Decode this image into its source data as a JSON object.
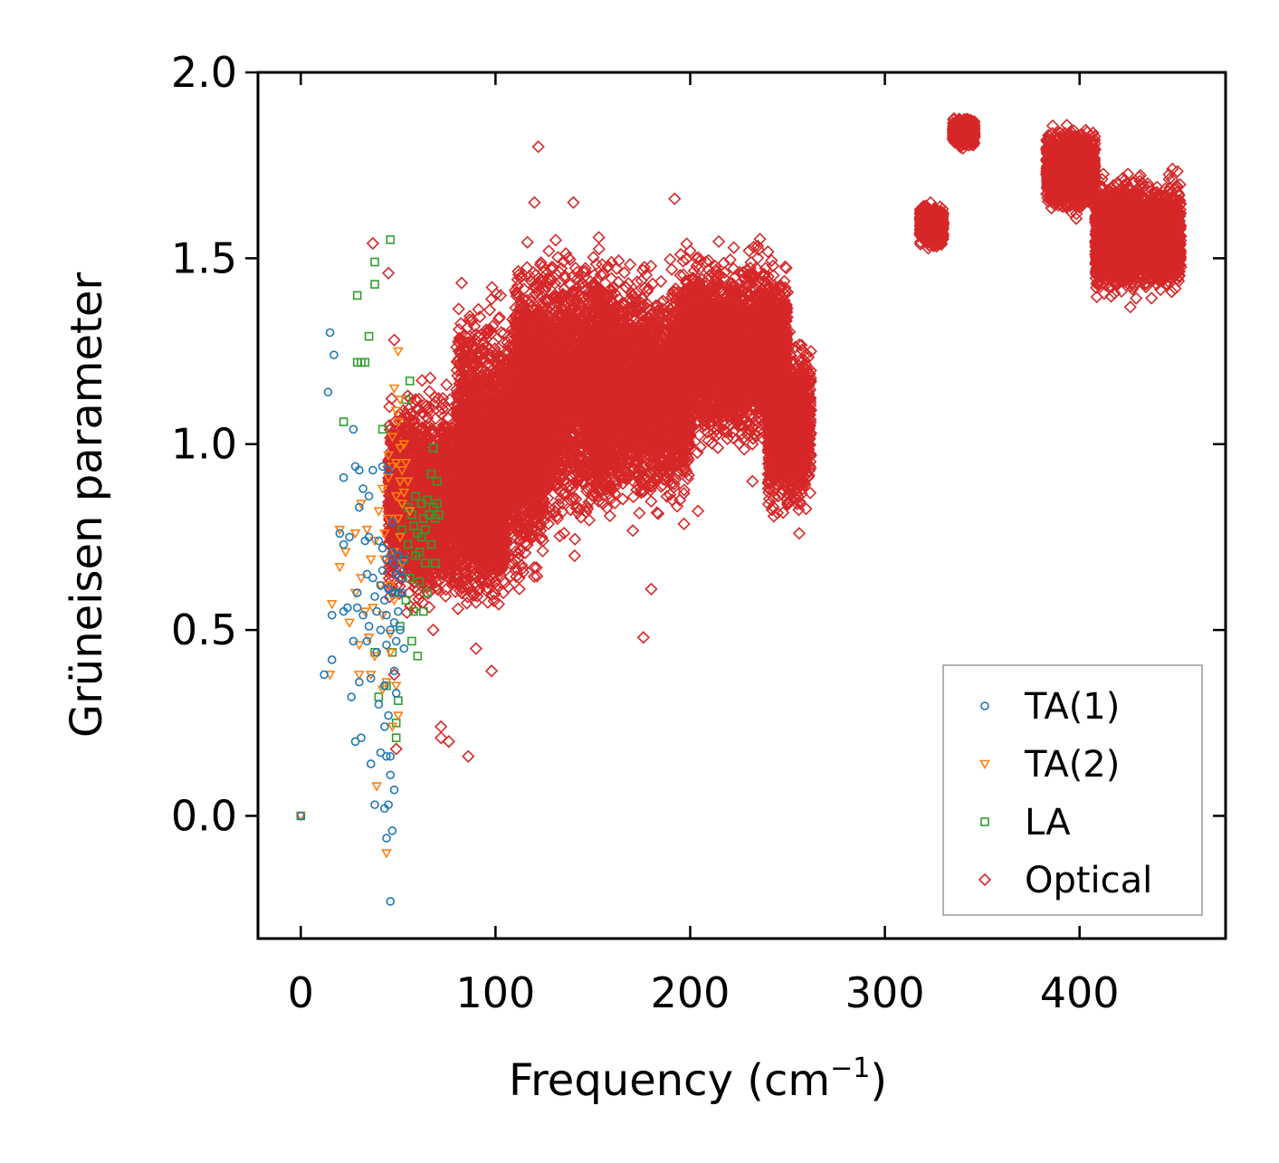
{
  "chart_data": {
    "type": "scatter",
    "xlabel": "Frequency (cm",
    "xlabel_sup": "−1",
    "xlabel_close": ")",
    "ylabel": "Grüneisen parameter",
    "xlim": [
      -22,
      475
    ],
    "ylim": [
      -0.33,
      2.0
    ],
    "xticks": [
      0,
      100,
      200,
      300,
      400
    ],
    "xtick_labels": [
      "0",
      "100",
      "200",
      "300",
      "400"
    ],
    "yticks": [
      0.0,
      0.5,
      1.0,
      1.5,
      2.0
    ],
    "ytick_labels": [
      "0.0",
      "0.5",
      "1.0",
      "1.5",
      "2.0"
    ],
    "legend_position": "lower-right",
    "series": [
      {
        "name": "TA(1)",
        "marker": "circle",
        "color": "#1f77b4",
        "points": [
          [
            0,
            0.0
          ],
          [
            12,
            0.38
          ],
          [
            14,
            1.14
          ],
          [
            15,
            1.3
          ],
          [
            16,
            0.54
          ],
          [
            16,
            0.42
          ],
          [
            17,
            1.24
          ],
          [
            20,
            0.76
          ],
          [
            22,
            0.73
          ],
          [
            22,
            0.91
          ],
          [
            22,
            0.55
          ],
          [
            24,
            0.56
          ],
          [
            25,
            0.75
          ],
          [
            26,
            0.32
          ],
          [
            27,
            0.47
          ],
          [
            27,
            1.04
          ],
          [
            28,
            0.94
          ],
          [
            28,
            0.2
          ],
          [
            29,
            0.6
          ],
          [
            29,
            0.56
          ],
          [
            30,
            0.93
          ],
          [
            30,
            0.83
          ],
          [
            30,
            0.36
          ],
          [
            31,
            0.21
          ],
          [
            32,
            0.88
          ],
          [
            32,
            0.54
          ],
          [
            33,
            0.74
          ],
          [
            34,
            0.65
          ],
          [
            34,
            0.47
          ],
          [
            35,
            0.86
          ],
          [
            35,
            0.75
          ],
          [
            35,
            0.51
          ],
          [
            36,
            0.37
          ],
          [
            36,
            0.14
          ],
          [
            37,
            0.64
          ],
          [
            37,
            0.93
          ],
          [
            38,
            0.59
          ],
          [
            38,
            0.03
          ],
          [
            39,
            0.55
          ],
          [
            39,
            0.44
          ],
          [
            40,
            0.74
          ],
          [
            40,
            0.3
          ],
          [
            41,
            0.62
          ],
          [
            41,
            0.5
          ],
          [
            41,
            0.17
          ],
          [
            42,
            0.72
          ],
          [
            42,
            0.66
          ],
          [
            42,
            0.94
          ],
          [
            43,
            0.58
          ],
          [
            43,
            0.35
          ],
          [
            43,
            0.24
          ],
          [
            43,
            0.02
          ],
          [
            44,
            0.54
          ],
          [
            44,
            0.69
          ],
          [
            44,
            0.46
          ],
          [
            44,
            0.16
          ],
          [
            44,
            -0.06
          ],
          [
            45,
            0.93
          ],
          [
            45,
            0.61
          ],
          [
            45,
            0.27
          ],
          [
            45,
            0.03
          ],
          [
            46,
            -0.23
          ],
          [
            46,
            0.5
          ],
          [
            46,
            0.16
          ],
          [
            46,
            0.11
          ],
          [
            47,
            0.79
          ],
          [
            47,
            -0.04
          ],
          [
            47,
            0.71
          ],
          [
            47,
            0.6
          ],
          [
            48,
            0.68
          ],
          [
            48,
            0.52
          ],
          [
            48,
            0.39
          ],
          [
            48,
            0.07
          ],
          [
            49,
            0.65
          ],
          [
            49,
            0.47
          ],
          [
            49,
            0.33
          ],
          [
            50,
            0.6
          ],
          [
            50,
            0.7
          ],
          [
            50,
            0.55
          ],
          [
            51,
            0.66
          ],
          [
            51,
            0.5
          ],
          [
            52,
            0.64
          ],
          [
            52,
            0.6
          ],
          [
            53,
            0.69
          ],
          [
            53,
            0.45
          ]
        ]
      },
      {
        "name": "TA(2)",
        "marker": "triangle-down",
        "color": "#ff7f0e",
        "points": [
          [
            0,
            0.0
          ],
          [
            15,
            0.38
          ],
          [
            16,
            0.57
          ],
          [
            20,
            0.77
          ],
          [
            20,
            0.67
          ],
          [
            23,
            0.71
          ],
          [
            25,
            0.52
          ],
          [
            28,
            0.6
          ],
          [
            28,
            0.76
          ],
          [
            30,
            0.46
          ],
          [
            30,
            0.38
          ],
          [
            31,
            0.64
          ],
          [
            31,
            0.84
          ],
          [
            33,
            0.55
          ],
          [
            34,
            0.77
          ],
          [
            35,
            0.48
          ],
          [
            36,
            0.69
          ],
          [
            36,
            0.38
          ],
          [
            37,
            0.56
          ],
          [
            38,
            0.74
          ],
          [
            38,
            0.43
          ],
          [
            39,
            0.08
          ],
          [
            40,
            0.82
          ],
          [
            41,
            0.62
          ],
          [
            42,
            0.88
          ],
          [
            42,
            0.34
          ],
          [
            42,
            0.54
          ],
          [
            43,
            0.76
          ],
          [
            43,
            0.69
          ],
          [
            44,
            -0.1
          ],
          [
            44,
            0.36
          ],
          [
            45,
            0.97
          ],
          [
            45,
            0.91
          ],
          [
            45,
            0.8
          ],
          [
            46,
            0.62
          ],
          [
            46,
            0.49
          ],
          [
            46,
            0.44
          ],
          [
            47,
            1.02
          ],
          [
            47,
            0.94
          ],
          [
            47,
            0.24
          ],
          [
            48,
            1.15
          ],
          [
            48,
            0.71
          ],
          [
            48,
            0.58
          ],
          [
            49,
            1.09
          ],
          [
            49,
            0.95
          ],
          [
            49,
            0.86
          ],
          [
            49,
            0.35
          ],
          [
            50,
            1.25
          ],
          [
            50,
            1.06
          ],
          [
            50,
            0.8
          ],
          [
            50,
            0.27
          ],
          [
            51,
            1.12
          ],
          [
            51,
            0.99
          ],
          [
            51,
            0.9
          ],
          [
            51,
            0.75
          ],
          [
            52,
            0.93
          ],
          [
            52,
            0.84
          ],
          [
            52,
            0.68
          ],
          [
            53,
            1.0
          ],
          [
            53,
            0.87
          ],
          [
            54,
            0.95
          ],
          [
            55,
            0.9
          ],
          [
            56,
            0.82
          ]
        ]
      },
      {
        "name": "LA",
        "marker": "square",
        "color": "#2ca02c",
        "points": [
          [
            0,
            0.0
          ],
          [
            22,
            1.06
          ],
          [
            29,
            1.4
          ],
          [
            29,
            1.22
          ],
          [
            31,
            1.22
          ],
          [
            33,
            1.22
          ],
          [
            35,
            1.29
          ],
          [
            38,
            1.49
          ],
          [
            38,
            1.43
          ],
          [
            38,
            0.44
          ],
          [
            40,
            0.32
          ],
          [
            42,
            1.04
          ],
          [
            44,
            0.35
          ],
          [
            46,
            1.55
          ],
          [
            47,
            0.44
          ],
          [
            48,
            0.6
          ],
          [
            49,
            0.25
          ],
          [
            49,
            0.21
          ],
          [
            50,
            0.31
          ],
          [
            51,
            0.51
          ],
          [
            52,
            0.77
          ],
          [
            53,
            0.69
          ],
          [
            54,
            0.58
          ],
          [
            54,
            1.12
          ],
          [
            55,
            0.83
          ],
          [
            55,
            0.73
          ],
          [
            56,
            1.17
          ],
          [
            56,
            0.64
          ],
          [
            57,
            0.81
          ],
          [
            57,
            0.47
          ],
          [
            58,
            0.78
          ],
          [
            58,
            0.55
          ],
          [
            59,
            0.7
          ],
          [
            59,
            0.86
          ],
          [
            60,
            0.76
          ],
          [
            60,
            0.43
          ],
          [
            61,
            0.71
          ],
          [
            61,
            0.63
          ],
          [
            62,
            0.84
          ],
          [
            62,
            0.75
          ],
          [
            63,
            0.8
          ],
          [
            63,
            0.55
          ],
          [
            64,
            0.77
          ],
          [
            64,
            0.68
          ],
          [
            65,
            0.85
          ],
          [
            65,
            0.6
          ],
          [
            66,
            0.81
          ],
          [
            67,
            0.73
          ],
          [
            67,
            0.92
          ],
          [
            68,
            0.99
          ],
          [
            68,
            0.83
          ],
          [
            69,
            0.8
          ],
          [
            69,
            0.68
          ],
          [
            70,
            0.9
          ],
          [
            70,
            0.84
          ],
          [
            71,
            0.81
          ]
        ]
      },
      {
        "name": "Optical",
        "marker": "diamond",
        "color": "#d62728",
        "clusters": [
          {
            "x_range": [
              45,
              105
            ],
            "y_center": 0.85,
            "y_spread": 0.2
          },
          {
            "x_range": [
              80,
              125
            ],
            "y_center": 1.0,
            "y_spread": 0.27
          },
          {
            "x_range": [
              110,
              160
            ],
            "y_center": 1.15,
            "y_spread": 0.27
          },
          {
            "x_range": [
              150,
              200
            ],
            "y_center": 1.15,
            "y_spread": 0.22
          },
          {
            "x_range": [
              195,
              250
            ],
            "y_center": 1.25,
            "y_spread": 0.18
          },
          {
            "x_range": [
              240,
              262
            ],
            "y_center": 1.05,
            "y_spread": 0.17
          },
          {
            "x_range": [
              318,
              330
            ],
            "y_center": 1.59,
            "y_spread": 0.04
          },
          {
            "x_range": [
              335,
              346
            ],
            "y_center": 1.84,
            "y_spread": 0.03
          },
          {
            "x_range": [
              383,
              408
            ],
            "y_center": 1.74,
            "y_spread": 0.08
          },
          {
            "x_range": [
              408,
              452
            ],
            "y_center": 1.56,
            "y_spread": 0.11
          }
        ],
        "points": [
          [
            37,
            1.54
          ],
          [
            45,
            1.46
          ],
          [
            48,
            1.28
          ],
          [
            48,
            0.38
          ],
          [
            49,
            0.18
          ],
          [
            72,
            0.24
          ],
          [
            72,
            0.21
          ],
          [
            76,
            0.2
          ],
          [
            86,
            0.16
          ],
          [
            122,
            1.8
          ],
          [
            120,
            1.65
          ],
          [
            140,
            1.65
          ],
          [
            192,
            1.66
          ],
          [
            200,
            1.52
          ],
          [
            232,
            0.9
          ],
          [
            262,
            1.17
          ],
          [
            256,
            0.76
          ],
          [
            204,
            0.82
          ],
          [
            176,
            0.48
          ],
          [
            180,
            0.61
          ],
          [
            104,
            0.6
          ],
          [
            98,
            0.39
          ],
          [
            90,
            0.45
          ],
          [
            68,
            0.5
          ]
        ]
      }
    ]
  }
}
